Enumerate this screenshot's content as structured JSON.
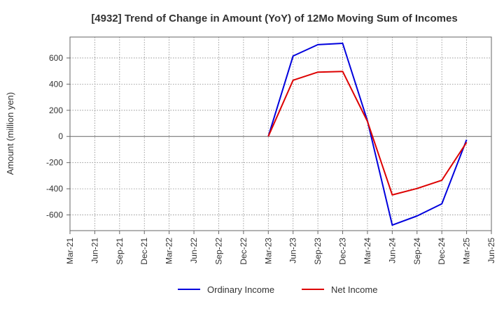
{
  "chart_data": {
    "type": "line",
    "title": "[4932]  Trend of Change in Amount (YoY) of 12Mo Moving Sum of Incomes",
    "xlabel": "",
    "ylabel": "Amount (million yen)",
    "categories": [
      "Mar-21",
      "Jun-21",
      "Sep-21",
      "Dec-21",
      "Mar-22",
      "Jun-22",
      "Sep-22",
      "Dec-22",
      "Mar-23",
      "Jun-23",
      "Sep-23",
      "Dec-23",
      "Mar-24",
      "Jun-24",
      "Sep-24",
      "Dec-24",
      "Mar-25",
      "Jun-25"
    ],
    "ylim": [
      -720,
      760
    ],
    "yticks": [
      600,
      400,
      200,
      0,
      -200,
      -400,
      -600
    ],
    "grid": true,
    "legend_position": "bottom",
    "series": [
      {
        "name": "Ordinary Income",
        "color": "#0000dd",
        "values": [
          null,
          null,
          null,
          null,
          null,
          null,
          null,
          null,
          0,
          615,
          702,
          712,
          120,
          -678,
          -608,
          -515,
          -25,
          null
        ]
      },
      {
        "name": "Net Income",
        "color": "#dd0000",
        "values": [
          null,
          null,
          null,
          null,
          null,
          null,
          null,
          null,
          0,
          430,
          492,
          497,
          115,
          -447,
          -398,
          -335,
          -45,
          null
        ]
      }
    ]
  }
}
